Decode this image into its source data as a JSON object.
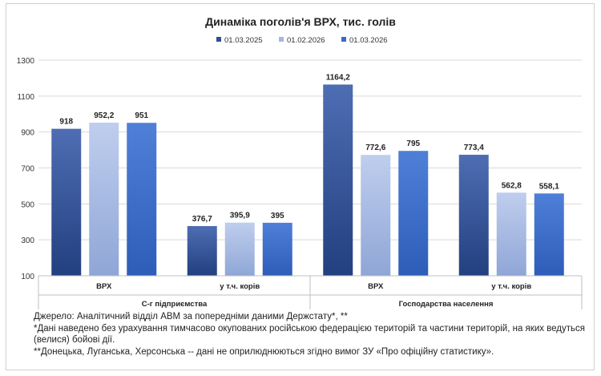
{
  "chart_data": {
    "type": "bar",
    "title": "Динаміка поголів'я ВРХ, тис. голів",
    "series": [
      {
        "name": "01.03.2025",
        "color": "#2F4F96",
        "values": [
          918,
          376.7,
          1164.2,
          773.4
        ]
      },
      {
        "name": "01.02.2026",
        "color": "#A6B8E0",
        "values": [
          952.2,
          395.9,
          772.6,
          562.8
        ]
      },
      {
        "name": "01.03.2026",
        "color": "#3A6CC8",
        "values": [
          951,
          395,
          795,
          558.1
        ]
      }
    ],
    "value_labels": [
      [
        "918",
        "376,7",
        "1164,2",
        "773,4"
      ],
      [
        "952,2",
        "395,9",
        "772,6",
        "562,8"
      ],
      [
        "951",
        "395",
        "795",
        "558,1"
      ]
    ],
    "categories": [
      "ВРХ",
      "у т.ч. корів",
      "ВРХ",
      "у т.ч. корів"
    ],
    "groups": [
      {
        "label": "С-г підприємства",
        "categories": [
          0,
          1
        ]
      },
      {
        "label": "Господарства  населення",
        "categories": [
          2,
          3
        ]
      }
    ],
    "ylim": [
      100,
      1300
    ],
    "yticks": [
      100,
      300,
      500,
      700,
      900,
      1100,
      1300
    ],
    "legend_position": "top-center",
    "grid": true
  },
  "notes": {
    "source": "Джерело: Аналітичний відділ АВМ за попередніми даними Держстату*, **",
    "note1_line1": "*Дані наведено без урахування тимчасово окупованих російською федерацією територій та частини територій, на яких ведуться",
    "note1_line2": "(велися) бойові дії.",
    "note2": "**Донецька, Луганська, Херсонська -- дані не оприлюднюються згідно вимог ЗУ «Про офіційну статистику»."
  }
}
